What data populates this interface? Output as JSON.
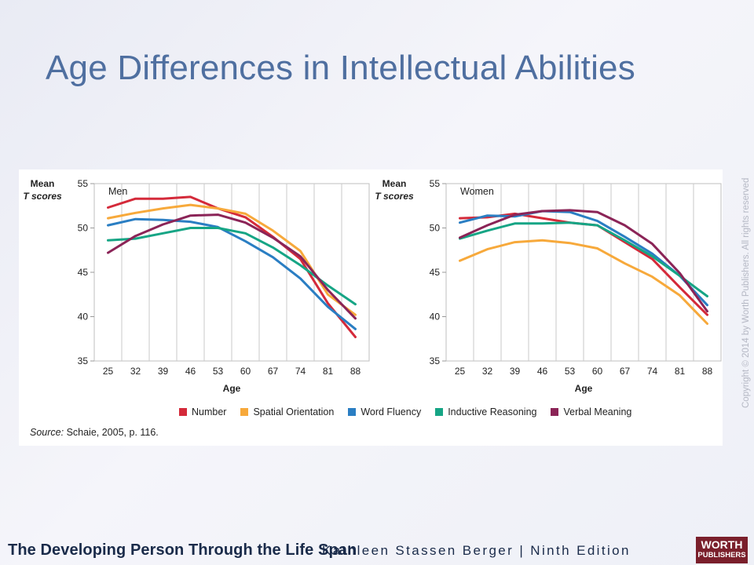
{
  "title": "Age Differences in Intellectual Abilities",
  "copyright": "Copyright © 2014 by Worth Publishers. All rights reserved",
  "footer": {
    "book_title": "The Developing Person Through the Life Span",
    "author_edition": "Kathleen Stassen Berger | Ninth Edition",
    "publisher_line1": "WORTH",
    "publisher_line2": "PUBLISHERS"
  },
  "source_note": {
    "label": "Source:",
    "text": " Schaie, 2005, p. 116."
  },
  "colors": {
    "Number": "#d42a3a",
    "Spatial Orientation": "#f7a93b",
    "Word Fluency": "#2a7ec3",
    "Inductive Reasoning": "#16a585",
    "Verbal Meaning": "#8b2457"
  },
  "chart_data": [
    {
      "type": "line",
      "title": "Men",
      "ylabel": "Mean T scores",
      "ylabel_line1": "Mean",
      "ylabel_line2": "T scores",
      "xlabel": "Age",
      "x": [
        25,
        32,
        39,
        46,
        53,
        60,
        67,
        74,
        81,
        88
      ],
      "ylim": [
        35,
        55
      ],
      "yticks": [
        35,
        40,
        45,
        50,
        55
      ],
      "grid": true,
      "series": [
        {
          "name": "Number",
          "values": [
            52.3,
            53.3,
            53.3,
            53.5,
            52.2,
            51.2,
            49.0,
            46.5,
            41.5,
            37.7
          ]
        },
        {
          "name": "Spatial Orientation",
          "values": [
            51.1,
            51.7,
            52.2,
            52.6,
            52.2,
            51.6,
            49.7,
            47.4,
            42.5,
            40.2
          ]
        },
        {
          "name": "Word Fluency",
          "values": [
            50.3,
            51.0,
            50.9,
            50.7,
            50.1,
            48.5,
            46.7,
            44.3,
            41.1,
            38.6
          ]
        },
        {
          "name": "Inductive Reasoning",
          "values": [
            48.6,
            48.8,
            49.4,
            50.0,
            50.0,
            49.4,
            47.8,
            45.8,
            43.5,
            41.4
          ]
        },
        {
          "name": "Verbal Meaning",
          "values": [
            47.2,
            49.1,
            50.4,
            51.4,
            51.5,
            50.6,
            48.9,
            46.8,
            43.0,
            39.8
          ]
        }
      ]
    },
    {
      "type": "line",
      "title": "Women",
      "ylabel": "Mean T scores",
      "ylabel_line1": "Mean",
      "ylabel_line2": "T scores",
      "xlabel": "Age",
      "x": [
        25,
        32,
        39,
        46,
        53,
        60,
        67,
        74,
        81,
        88
      ],
      "ylim": [
        35,
        55
      ],
      "yticks": [
        35,
        40,
        45,
        50,
        55
      ],
      "grid": true,
      "series": [
        {
          "name": "Number",
          "values": [
            51.1,
            51.2,
            51.6,
            51.1,
            50.6,
            50.3,
            48.4,
            46.5,
            43.3,
            40.2
          ]
        },
        {
          "name": "Spatial Orientation",
          "values": [
            46.3,
            47.6,
            48.4,
            48.6,
            48.3,
            47.7,
            46.0,
            44.5,
            42.4,
            39.2
          ]
        },
        {
          "name": "Word Fluency",
          "values": [
            50.6,
            51.4,
            51.3,
            51.9,
            51.8,
            50.8,
            49.0,
            47.1,
            44.6,
            41.3
          ]
        },
        {
          "name": "Inductive Reasoning",
          "values": [
            48.8,
            49.7,
            50.5,
            50.5,
            50.6,
            50.3,
            48.6,
            46.8,
            44.6,
            42.3
          ]
        },
        {
          "name": "Verbal Meaning",
          "values": [
            48.9,
            50.3,
            51.5,
            51.9,
            52.0,
            51.8,
            50.3,
            48.2,
            44.9,
            40.6
          ]
        }
      ]
    }
  ],
  "legend": [
    "Number",
    "Spatial Orientation",
    "Word Fluency",
    "Inductive Reasoning",
    "Verbal Meaning"
  ]
}
